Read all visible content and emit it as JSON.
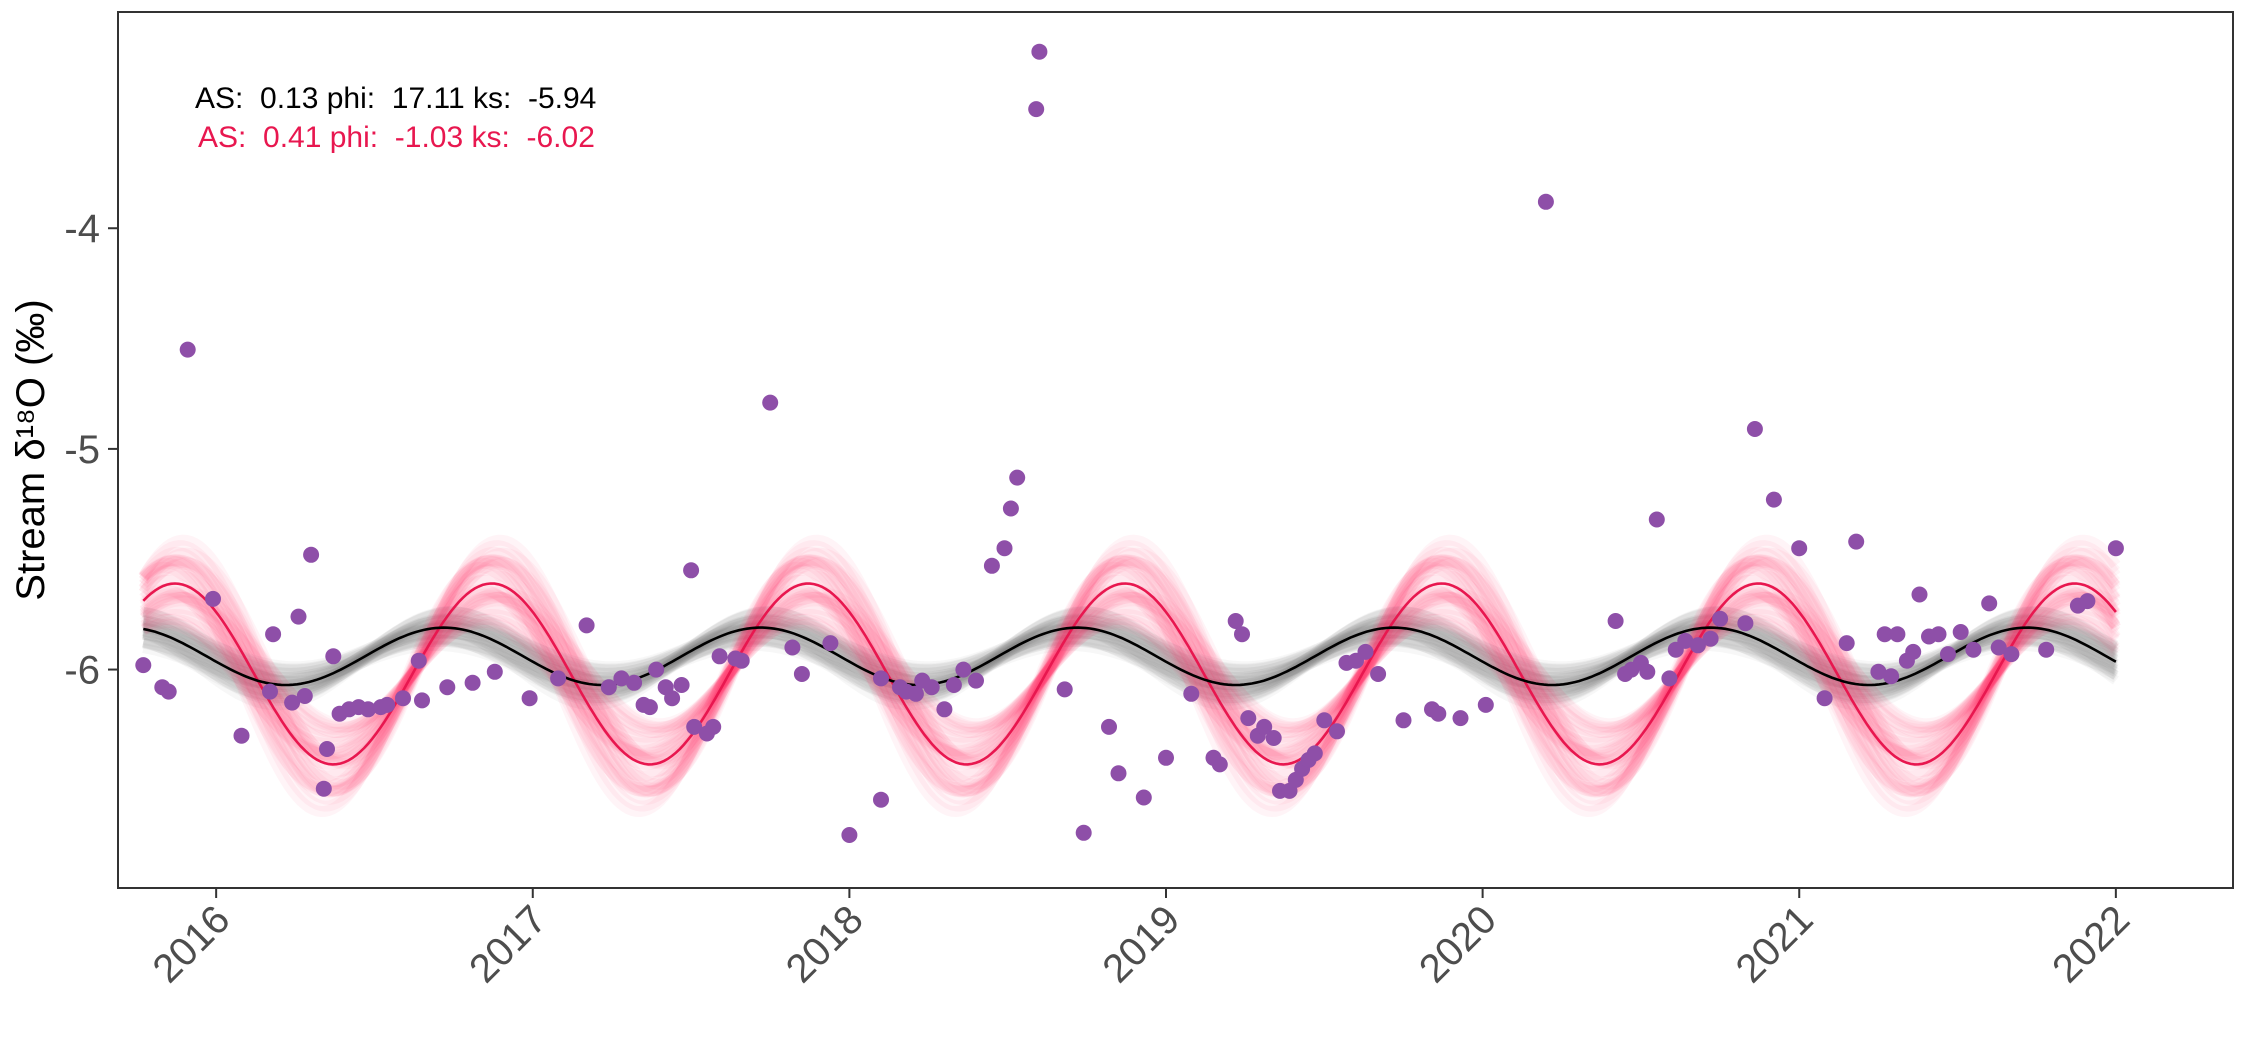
{
  "chart_data": {
    "type": "scatter",
    "ylabel": "Stream δ¹⁸O (‰)",
    "xlabel": "",
    "xlim": [
      2015.69,
      2022.37
    ],
    "ylim": [
      -6.99,
      -3.02
    ],
    "x_ticks": [
      2016,
      2017,
      2018,
      2019,
      2020,
      2021,
      2022
    ],
    "x_tick_labels": [
      "2016",
      "2017",
      "2018",
      "2019",
      "2020",
      "2021",
      "2022"
    ],
    "y_ticks": [
      -6,
      -5,
      -4
    ],
    "y_tick_labels": [
      "-6",
      "-5",
      "-4"
    ],
    "colors": {
      "points": "#8e4fa8",
      "fit_black": "#000000",
      "fit_red": "#e8174f",
      "band_black": "#7f7f7f",
      "band_red": "#ff2f63"
    },
    "series": [
      {
        "name": "sine fit (black)",
        "type": "line",
        "amplitude": 0.13,
        "phi": 17.11,
        "ks": -5.94,
        "x_range": [
          2015.77,
          2022.0
        ]
      },
      {
        "name": "sine fit (red)",
        "type": "line",
        "amplitude": 0.41,
        "phi": -1.03,
        "ks": -6.02,
        "x_range": [
          2015.77,
          2022.0
        ]
      },
      {
        "name": "stream samples",
        "type": "scatter",
        "points": [
          [
            2015.77,
            -5.98
          ],
          [
            2015.83,
            -6.08
          ],
          [
            2015.85,
            -6.1
          ],
          [
            2015.91,
            -4.55
          ],
          [
            2015.99,
            -5.68
          ],
          [
            2016.08,
            -6.3
          ],
          [
            2016.17,
            -6.1
          ],
          [
            2016.18,
            -5.84
          ],
          [
            2016.24,
            -6.15
          ],
          [
            2016.26,
            -5.76
          ],
          [
            2016.28,
            -6.12
          ],
          [
            2016.3,
            -5.48
          ],
          [
            2016.34,
            -6.54
          ],
          [
            2016.35,
            -6.36
          ],
          [
            2016.37,
            -5.94
          ],
          [
            2016.39,
            -6.2
          ],
          [
            2016.42,
            -6.18
          ],
          [
            2016.45,
            -6.17
          ],
          [
            2016.48,
            -6.18
          ],
          [
            2016.52,
            -6.17
          ],
          [
            2016.54,
            -6.16
          ],
          [
            2016.59,
            -6.13
          ],
          [
            2016.64,
            -5.96
          ],
          [
            2016.65,
            -6.14
          ],
          [
            2016.73,
            -6.08
          ],
          [
            2016.81,
            -6.06
          ],
          [
            2016.88,
            -6.01
          ],
          [
            2016.99,
            -6.13
          ],
          [
            2017.08,
            -6.04
          ],
          [
            2017.17,
            -5.8
          ],
          [
            2017.24,
            -6.08
          ],
          [
            2017.28,
            -6.04
          ],
          [
            2017.32,
            -6.06
          ],
          [
            2017.35,
            -6.16
          ],
          [
            2017.37,
            -6.17
          ],
          [
            2017.39,
            -6.0
          ],
          [
            2017.42,
            -6.08
          ],
          [
            2017.44,
            -6.13
          ],
          [
            2017.47,
            -6.07
          ],
          [
            2017.5,
            -5.55
          ],
          [
            2017.51,
            -6.26
          ],
          [
            2017.55,
            -6.29
          ],
          [
            2017.57,
            -6.26
          ],
          [
            2017.59,
            -5.94
          ],
          [
            2017.64,
            -5.95
          ],
          [
            2017.66,
            -5.96
          ],
          [
            2017.75,
            -4.79
          ],
          [
            2017.82,
            -5.9
          ],
          [
            2017.85,
            -6.02
          ],
          [
            2017.94,
            -5.88
          ],
          [
            2018.0,
            -6.75
          ],
          [
            2018.1,
            -6.04
          ],
          [
            2018.1,
            -6.59
          ],
          [
            2018.16,
            -6.08
          ],
          [
            2018.18,
            -6.1
          ],
          [
            2018.21,
            -6.11
          ],
          [
            2018.23,
            -6.05
          ],
          [
            2018.26,
            -6.08
          ],
          [
            2018.3,
            -6.18
          ],
          [
            2018.33,
            -6.07
          ],
          [
            2018.36,
            -6.0
          ],
          [
            2018.4,
            -6.05
          ],
          [
            2018.45,
            -5.53
          ],
          [
            2018.49,
            -5.45
          ],
          [
            2018.51,
            -5.27
          ],
          [
            2018.53,
            -5.13
          ],
          [
            2018.59,
            -3.46
          ],
          [
            2018.6,
            -3.2
          ],
          [
            2018.68,
            -6.09
          ],
          [
            2018.74,
            -6.74
          ],
          [
            2018.82,
            -6.26
          ],
          [
            2018.85,
            -6.47
          ],
          [
            2018.93,
            -6.58
          ],
          [
            2019.0,
            -6.4
          ],
          [
            2019.08,
            -6.11
          ],
          [
            2019.15,
            -6.4
          ],
          [
            2019.17,
            -6.43
          ],
          [
            2019.22,
            -5.78
          ],
          [
            2019.24,
            -5.84
          ],
          [
            2019.26,
            -6.22
          ],
          [
            2019.29,
            -6.3
          ],
          [
            2019.31,
            -6.26
          ],
          [
            2019.34,
            -6.31
          ],
          [
            2019.36,
            -6.55
          ],
          [
            2019.39,
            -6.55
          ],
          [
            2019.41,
            -6.5
          ],
          [
            2019.43,
            -6.45
          ],
          [
            2019.45,
            -6.41
          ],
          [
            2019.47,
            -6.38
          ],
          [
            2019.5,
            -6.23
          ],
          [
            2019.54,
            -6.28
          ],
          [
            2019.57,
            -5.97
          ],
          [
            2019.6,
            -5.96
          ],
          [
            2019.63,
            -5.92
          ],
          [
            2019.67,
            -6.02
          ],
          [
            2019.75,
            -6.23
          ],
          [
            2019.84,
            -6.18
          ],
          [
            2019.86,
            -6.2
          ],
          [
            2019.93,
            -6.22
          ],
          [
            2020.01,
            -6.16
          ],
          [
            2020.2,
            -3.88
          ],
          [
            2020.42,
            -5.78
          ],
          [
            2020.45,
            -6.02
          ],
          [
            2020.47,
            -6.0
          ],
          [
            2020.5,
            -5.97
          ],
          [
            2020.52,
            -6.01
          ],
          [
            2020.55,
            -5.32
          ],
          [
            2020.59,
            -6.04
          ],
          [
            2020.61,
            -5.91
          ],
          [
            2020.64,
            -5.87
          ],
          [
            2020.68,
            -5.89
          ],
          [
            2020.72,
            -5.86
          ],
          [
            2020.75,
            -5.77
          ],
          [
            2020.83,
            -5.79
          ],
          [
            2020.86,
            -4.91
          ],
          [
            2020.92,
            -5.23
          ],
          [
            2021.0,
            -5.45
          ],
          [
            2021.08,
            -6.13
          ],
          [
            2021.15,
            -5.88
          ],
          [
            2021.18,
            -5.42
          ],
          [
            2021.25,
            -6.01
          ],
          [
            2021.27,
            -5.84
          ],
          [
            2021.29,
            -6.03
          ],
          [
            2021.31,
            -5.84
          ],
          [
            2021.34,
            -5.96
          ],
          [
            2021.36,
            -5.92
          ],
          [
            2021.38,
            -5.66
          ],
          [
            2021.41,
            -5.85
          ],
          [
            2021.44,
            -5.84
          ],
          [
            2021.47,
            -5.93
          ],
          [
            2021.51,
            -5.83
          ],
          [
            2021.55,
            -5.91
          ],
          [
            2021.6,
            -5.7
          ],
          [
            2021.63,
            -5.9
          ],
          [
            2021.67,
            -5.93
          ],
          [
            2021.78,
            -5.91
          ],
          [
            2021.88,
            -5.71
          ],
          [
            2021.91,
            -5.69
          ],
          [
            2022.0,
            -5.45
          ]
        ]
      }
    ],
    "annotations": [
      {
        "text": "AS:  0.13 phi:  17.11 ks:  -5.94",
        "color": "#000000"
      },
      {
        "text": "AS:  0.41 phi:  -1.03 ks:  -6.02",
        "color": "#e8174f"
      }
    ]
  }
}
